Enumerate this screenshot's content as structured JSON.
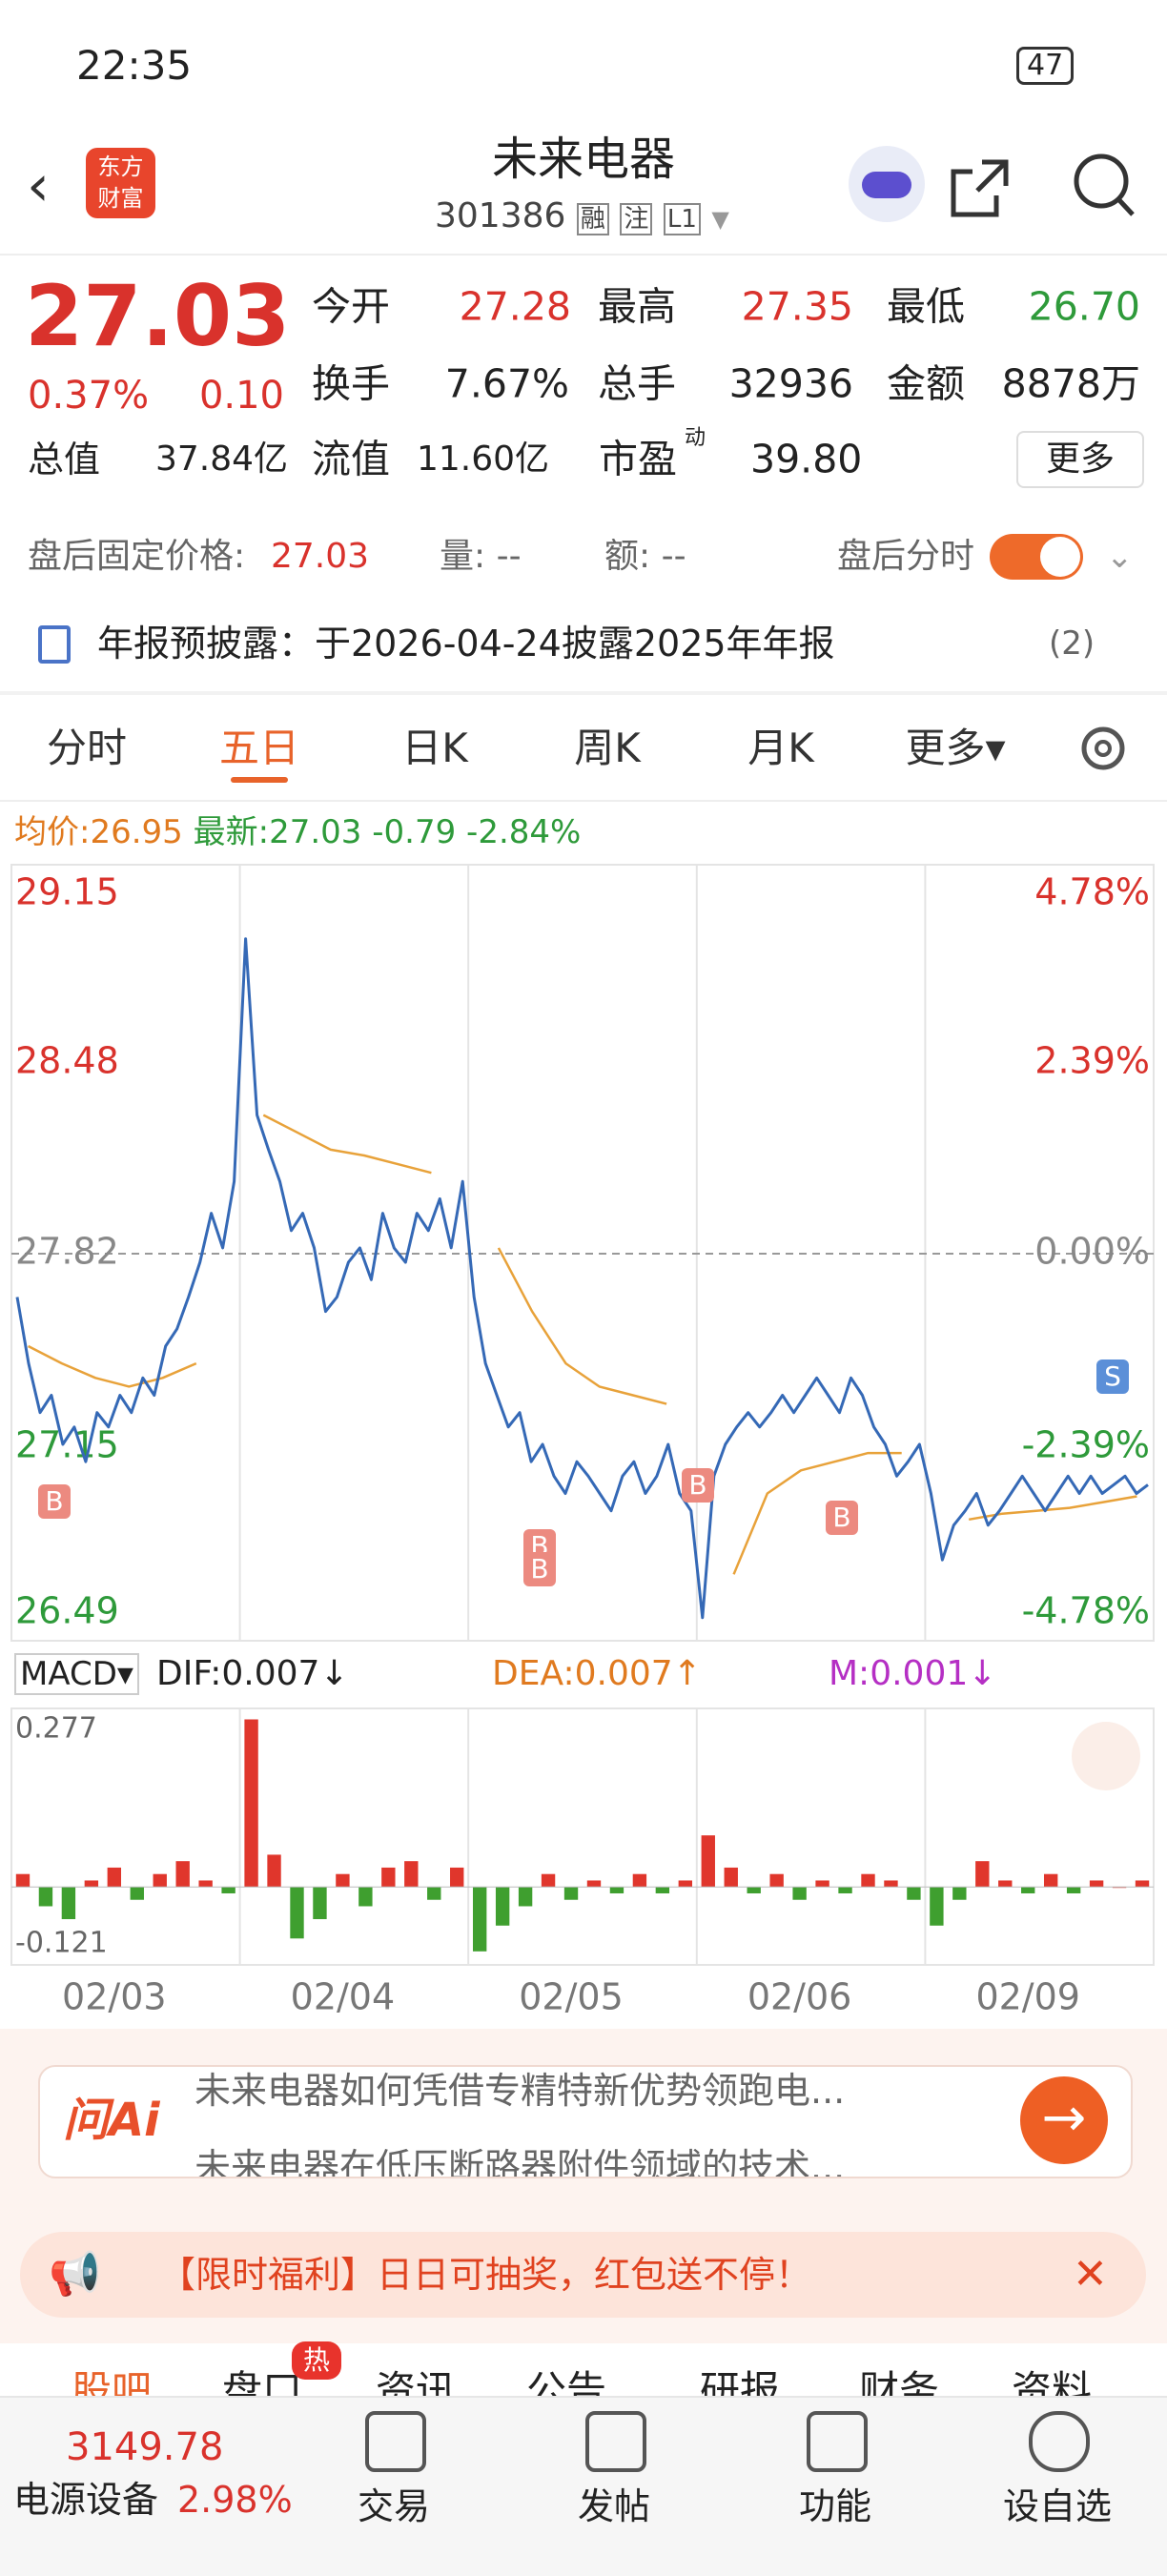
{
  "status": {
    "time": "22:35",
    "battery": "47"
  },
  "header": {
    "title": "未来电器",
    "code": "301386",
    "badges": [
      "融",
      "注",
      "L1"
    ],
    "logo": [
      "东方",
      "财富"
    ]
  },
  "quote": {
    "price": "27.03",
    "change_pct": "0.37%",
    "change": "0.10",
    "fields": [
      {
        "label": "今开",
        "value": "27.28"
      },
      {
        "label": "最高",
        "value": "27.35"
      },
      {
        "label": "最低",
        "value": "26.70"
      },
      {
        "label": "换手",
        "value": "7.67%"
      },
      {
        "label": "总手",
        "value": "32936"
      },
      {
        "label": "金额",
        "value": "8878万"
      },
      {
        "label": "总值",
        "value": "37.84亿"
      },
      {
        "label": "流值",
        "value": "11.60亿"
      },
      {
        "label": "市盈",
        "sup": "动",
        "value": "39.80"
      }
    ],
    "more": "更多"
  },
  "after_hours": {
    "label": "盘后固定价格:",
    "price": "27.03",
    "vol": "量: --",
    "amt": "额: --",
    "toggle": "盘后分时"
  },
  "notice": {
    "text": "年报预披露：于2026-04-24披露2025年年报",
    "count": "(2)"
  },
  "tabs": [
    "分时",
    "五日",
    "日K",
    "周K",
    "月K",
    "更多"
  ],
  "info": {
    "avg_label": "均价:",
    "avg": "26.95",
    "last_label": "最新:",
    "last": "27.03",
    "chg": "-0.79",
    "pct": "-2.84%"
  },
  "chart": {
    "type": "line",
    "ylim": [
      26.49,
      29.15
    ],
    "yticks": [
      29.15,
      28.48,
      27.82,
      27.15,
      26.49
    ],
    "pct_ticks": [
      "4.78%",
      "2.39%",
      "0.00%",
      "-2.39%",
      "-4.78%"
    ],
    "dates": [
      "02/03",
      "02/04",
      "02/05",
      "02/06",
      "02/09"
    ],
    "price": [
      27.67,
      27.44,
      27.27,
      27.33,
      27.16,
      27.22,
      27.1,
      27.27,
      27.22,
      27.33,
      27.27,
      27.39,
      27.33,
      27.5,
      27.56,
      27.67,
      27.79,
      27.96,
      27.84,
      28.07,
      28.91,
      28.3,
      28.18,
      28.07,
      27.9,
      27.96,
      27.84,
      27.62,
      27.67,
      27.79,
      27.84,
      27.73,
      27.96,
      27.84,
      27.79,
      27.96,
      27.9,
      28.01,
      27.84,
      28.07,
      27.67,
      27.44,
      27.33,
      27.22,
      27.27,
      27.1,
      27.16,
      27.05,
      26.99,
      27.1,
      27.05,
      26.99,
      26.93,
      27.05,
      27.1,
      26.99,
      27.05,
      27.16,
      26.99,
      26.93,
      26.56,
      27.05,
      27.16,
      27.22,
      27.27,
      27.22,
      27.27,
      27.33,
      27.27,
      27.33,
      27.39,
      27.33,
      27.27,
      27.39,
      27.33,
      27.22,
      27.16,
      27.05,
      27.1,
      27.16,
      26.99,
      26.76,
      26.88,
      26.93,
      26.99,
      26.88,
      26.93,
      26.99,
      27.05,
      26.99,
      26.93,
      26.99,
      27.05,
      26.99,
      27.05,
      26.99,
      27.02,
      27.05,
      26.99,
      27.02
    ],
    "avg": [
      27.5,
      27.44,
      27.39,
      27.36,
      27.39,
      27.44,
      null,
      28.3,
      28.24,
      28.18,
      28.16,
      28.13,
      28.1,
      null,
      27.84,
      27.62,
      27.44,
      27.36,
      27.33,
      27.3,
      null,
      26.71,
      26.99,
      27.07,
      27.1,
      27.13,
      27.13,
      null,
      26.9,
      26.92,
      26.93,
      26.94,
      26.96,
      26.98
    ],
    "markers": [
      "B",
      "B",
      "B",
      "B",
      "B",
      "S"
    ]
  },
  "macd": {
    "header": "MACD",
    "dif": "DIF:0.007↓",
    "dea": "DEA:0.007↑",
    "m": "M:0.001↓",
    "ylim": [
      -0.121,
      0.277
    ],
    "yticks": [
      0.277,
      -0.121
    ],
    "values": [
      0.02,
      -0.03,
      -0.05,
      0.01,
      0.03,
      -0.02,
      0.02,
      0.04,
      0.01,
      -0.01,
      0.26,
      0.05,
      -0.08,
      -0.05,
      0.02,
      -0.03,
      0.03,
      0.04,
      -0.02,
      0.03,
      -0.1,
      -0.06,
      -0.03,
      0.02,
      -0.02,
      0.01,
      -0.01,
      0.02,
      -0.01,
      0.01,
      0.08,
      0.03,
      -0.01,
      0.02,
      -0.02,
      0.01,
      -0.01,
      0.02,
      0.01,
      -0.02,
      -0.06,
      -0.02,
      0.04,
      0.01,
      -0.01,
      0.02,
      -0.01,
      0.01,
      0,
      0.01
    ]
  },
  "ai": {
    "badge": "问Ai",
    "lines": [
      "未来电器如何凭借专精特新优势领跑电...",
      "未来电器在低压断路器附件领域的技术..."
    ]
  },
  "promo": "【限时福利】日日可抽奖，红包送不停！",
  "sub_tabs": [
    "股吧",
    "盘口",
    "资讯",
    "公告",
    "研报",
    "财务",
    "资料"
  ],
  "hot": "热",
  "bottom": {
    "index": "3149.78",
    "sector": "电源设备",
    "sector_pct": "2.98%",
    "items": [
      "交易",
      "发帖",
      "功能",
      "设自选"
    ]
  }
}
